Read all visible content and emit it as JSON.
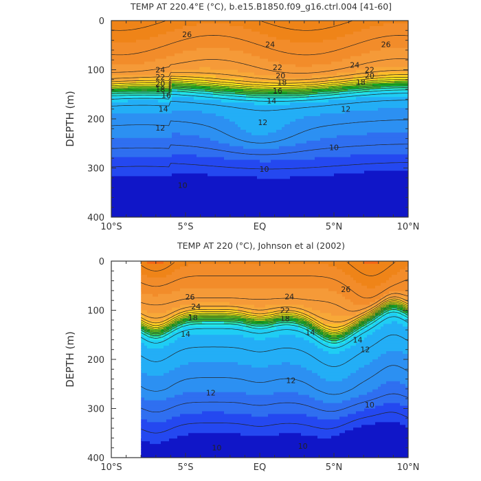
{
  "chart_data": [
    {
      "type": "heatmap",
      "title": "TEMP AT 220.4°E (°C), b.e15.B1850.f09_g16.ctrl.004 [41-60]",
      "xlabel": "",
      "ylabel": "DEPTH (m)",
      "x_tick_labels": [
        "10°S",
        "5°S",
        "EQ",
        "5°N",
        "10°N"
      ],
      "x_tick_values": [
        -10,
        -5,
        0,
        5,
        10
      ],
      "y_tick_labels": [
        "0",
        "100",
        "200",
        "300",
        "400"
      ],
      "y_tick_values": [
        0,
        100,
        200,
        300,
        400
      ],
      "xlim": [
        -10,
        10
      ],
      "ylim": [
        0,
        400
      ],
      "y_inverted": true,
      "data_xlim": [
        -10,
        10
      ],
      "contour_labels": [
        {
          "text": "26",
          "x": -4.9,
          "y": 28
        },
        {
          "text": "24",
          "x": 0.7,
          "y": 48
        },
        {
          "text": "26",
          "x": 8.5,
          "y": 48
        },
        {
          "text": "24",
          "x": -6.7,
          "y": 100
        },
        {
          "text": "22",
          "x": 1.2,
          "y": 95
        },
        {
          "text": "24",
          "x": 6.4,
          "y": 90
        },
        {
          "text": "22",
          "x": 7.4,
          "y": 100
        },
        {
          "text": "22",
          "x": -6.7,
          "y": 115
        },
        {
          "text": "20",
          "x": 1.4,
          "y": 112
        },
        {
          "text": "20",
          "x": 7.4,
          "y": 112
        },
        {
          "text": "20",
          "x": -6.7,
          "y": 128
        },
        {
          "text": "18",
          "x": 1.5,
          "y": 125
        },
        {
          "text": "18",
          "x": 6.8,
          "y": 125
        },
        {
          "text": "18",
          "x": -6.7,
          "y": 140
        },
        {
          "text": "16",
          "x": 1.2,
          "y": 143
        },
        {
          "text": "16",
          "x": -6.3,
          "y": 152
        },
        {
          "text": "14",
          "x": 0.8,
          "y": 163
        },
        {
          "text": "14",
          "x": -6.5,
          "y": 180
        },
        {
          "text": "12",
          "x": 5.8,
          "y": 180
        },
        {
          "text": "12",
          "x": 0.2,
          "y": 207
        },
        {
          "text": "12",
          "x": -6.7,
          "y": 218
        },
        {
          "text": "10",
          "x": 5.0,
          "y": 258
        },
        {
          "text": "10",
          "x": 0.3,
          "y": 302
        },
        {
          "text": "10",
          "x": -5.2,
          "y": 335
        }
      ],
      "colorbar": "none"
    },
    {
      "type": "heatmap",
      "title": "TEMP AT 220 (°C), Johnson et al (2002)",
      "xlabel": "",
      "ylabel": "DEPTH (m)",
      "x_tick_labels": [
        "10°S",
        "5°S",
        "EQ",
        "5°N",
        "10°N"
      ],
      "x_tick_values": [
        -10,
        -5,
        0,
        5,
        10
      ],
      "y_tick_labels": [
        "0",
        "100",
        "200",
        "300",
        "400"
      ],
      "y_tick_values": [
        0,
        100,
        200,
        300,
        400
      ],
      "xlim": [
        -10,
        10
      ],
      "ylim": [
        0,
        400
      ],
      "y_inverted": true,
      "data_xlim": [
        -8,
        10
      ],
      "contour_labels": [
        {
          "text": "26",
          "x": -4.7,
          "y": 73
        },
        {
          "text": "26",
          "x": 5.8,
          "y": 57
        },
        {
          "text": "24",
          "x": 2.0,
          "y": 72
        },
        {
          "text": "24",
          "x": -4.3,
          "y": 92
        },
        {
          "text": "22",
          "x": 1.7,
          "y": 100
        },
        {
          "text": "18",
          "x": 1.7,
          "y": 117
        },
        {
          "text": "18",
          "x": -4.5,
          "y": 115
        },
        {
          "text": "14",
          "x": 3.4,
          "y": 145
        },
        {
          "text": "14",
          "x": -5.0,
          "y": 148
        },
        {
          "text": "14",
          "x": 6.6,
          "y": 160
        },
        {
          "text": "12",
          "x": 7.1,
          "y": 180
        },
        {
          "text": "12",
          "x": 2.1,
          "y": 243
        },
        {
          "text": "12",
          "x": -3.3,
          "y": 268
        },
        {
          "text": "10",
          "x": 7.4,
          "y": 292
        },
        {
          "text": "10",
          "x": 2.9,
          "y": 376
        },
        {
          "text": "10",
          "x": -2.9,
          "y": 380
        }
      ],
      "colorbar": "none"
    }
  ]
}
